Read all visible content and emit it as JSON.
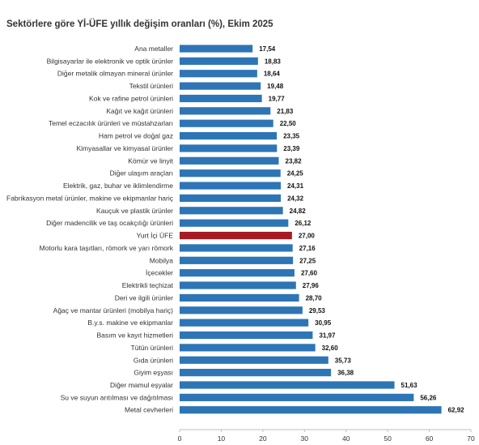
{
  "chart_data": {
    "type": "bar",
    "orientation": "horizontal",
    "title": "Sektörlere göre Yİ-ÜFE yıllık değişim oranları (%), Ekim 2025",
    "xlabel": "",
    "ylabel": "",
    "xlim": [
      0,
      70
    ],
    "xticks": [
      "0",
      "10",
      "20",
      "30",
      "40",
      "50",
      "60",
      "70"
    ],
    "grid": false,
    "colors": {
      "default": "#2e75b6",
      "highlight": "#a51c22"
    },
    "highlight_category": "Yurt İçi ÜFE",
    "categories": [
      "Ana metaller",
      "Bilgisayarlar ile elektronik ve optik ürünler",
      "Diğer metalik olmayan mineral ürünler",
      "Tekstil ürünleri",
      "Kok ve rafine petrol ürünleri",
      "Kağıt ve kağıt ürünleri",
      "Temel eczacılık ürünleri ve müstahzarları",
      "Ham petrol ve doğal gaz",
      "Kimyasallar ve kimyasal ürünler",
      "Kömür ve linyit",
      "Diğer ulaşım araçları",
      "Elektrik, gaz, buhar ve iklimlendirme",
      "Fabrikasyon metal ürünler, makine ve ekipmanlar hariç",
      "Kauçuk ve plastik ürünler",
      "Diğer madencilik ve taş ocakçılığı ürünleri",
      "Yurt İçi ÜFE",
      "Motorlu kara taşıtları, römork ve yarı römork",
      "Mobilya",
      "İçecekler",
      "Elektrikli teçhizat",
      "Deri ve ilgili ürünler",
      "Ağaç ve mantar ürünleri (mobilya hariç)",
      "B.y.s. makine ve ekipmanlar",
      "Basım ve kayıt hizmetleri",
      "Tütün ürünleri",
      "Gıda ürünleri",
      "Giyim eşyası",
      "Diğer mamul eşyalar",
      "Su ve suyun arıtılması ve dağıtılması",
      "Metal cevherleri"
    ],
    "values": [
      17.54,
      18.83,
      18.64,
      19.48,
      19.77,
      21.83,
      22.5,
      23.35,
      23.39,
      23.82,
      24.25,
      24.31,
      24.32,
      24.82,
      26.12,
      27.0,
      27.16,
      27.25,
      27.6,
      27.96,
      28.7,
      29.53,
      30.95,
      31.97,
      32.6,
      35.73,
      36.38,
      51.63,
      56.26,
      62.92
    ],
    "value_labels": [
      "17,54",
      "18,83",
      "18,64",
      "19,48",
      "19,77",
      "21,83",
      "22,50",
      "23,35",
      "23,39",
      "23,82",
      "24,25",
      "24,31",
      "24,32",
      "24,82",
      "26,12",
      "27,00",
      "27,16",
      "27,25",
      "27,60",
      "27,96",
      "28,70",
      "29,53",
      "30,95",
      "31,97",
      "32,60",
      "35,73",
      "36,38",
      "51,63",
      "56,26",
      "62,92"
    ]
  }
}
